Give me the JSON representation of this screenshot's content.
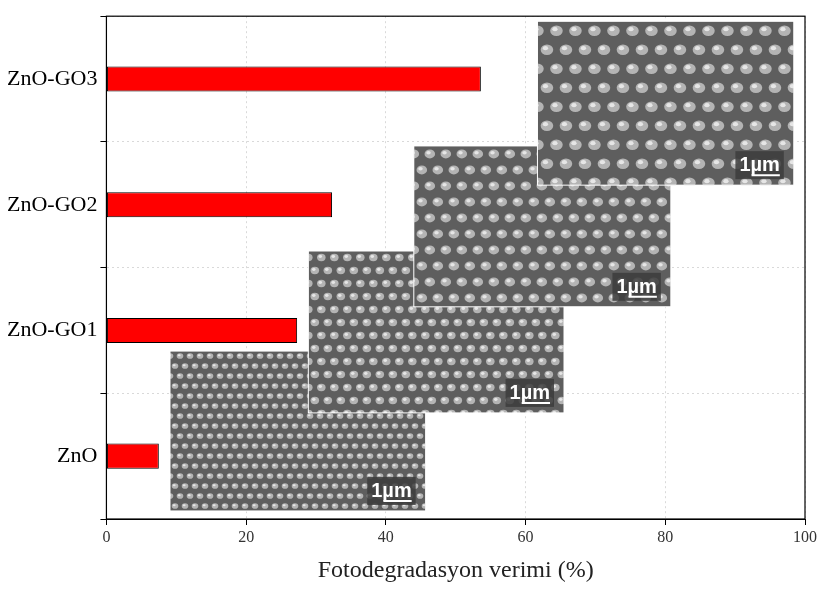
{
  "chart_data": {
    "type": "bar",
    "orientation": "horizontal",
    "x_label": "Fotodegradasyon verimi (%)",
    "categories": [
      "ZnO",
      "ZnO-GO1",
      "ZnO-GO2",
      "ZnO-GO3"
    ],
    "values": [
      7.5,
      27.3,
      32.3,
      53.6
    ],
    "color": "#ff0000",
    "xlim": [
      0,
      100
    ],
    "xticks": [
      0,
      20,
      40,
      60,
      80,
      100
    ],
    "grid": true,
    "annotations": [
      "1µm",
      "1µm",
      "1µm",
      "1µm"
    ]
  }
}
